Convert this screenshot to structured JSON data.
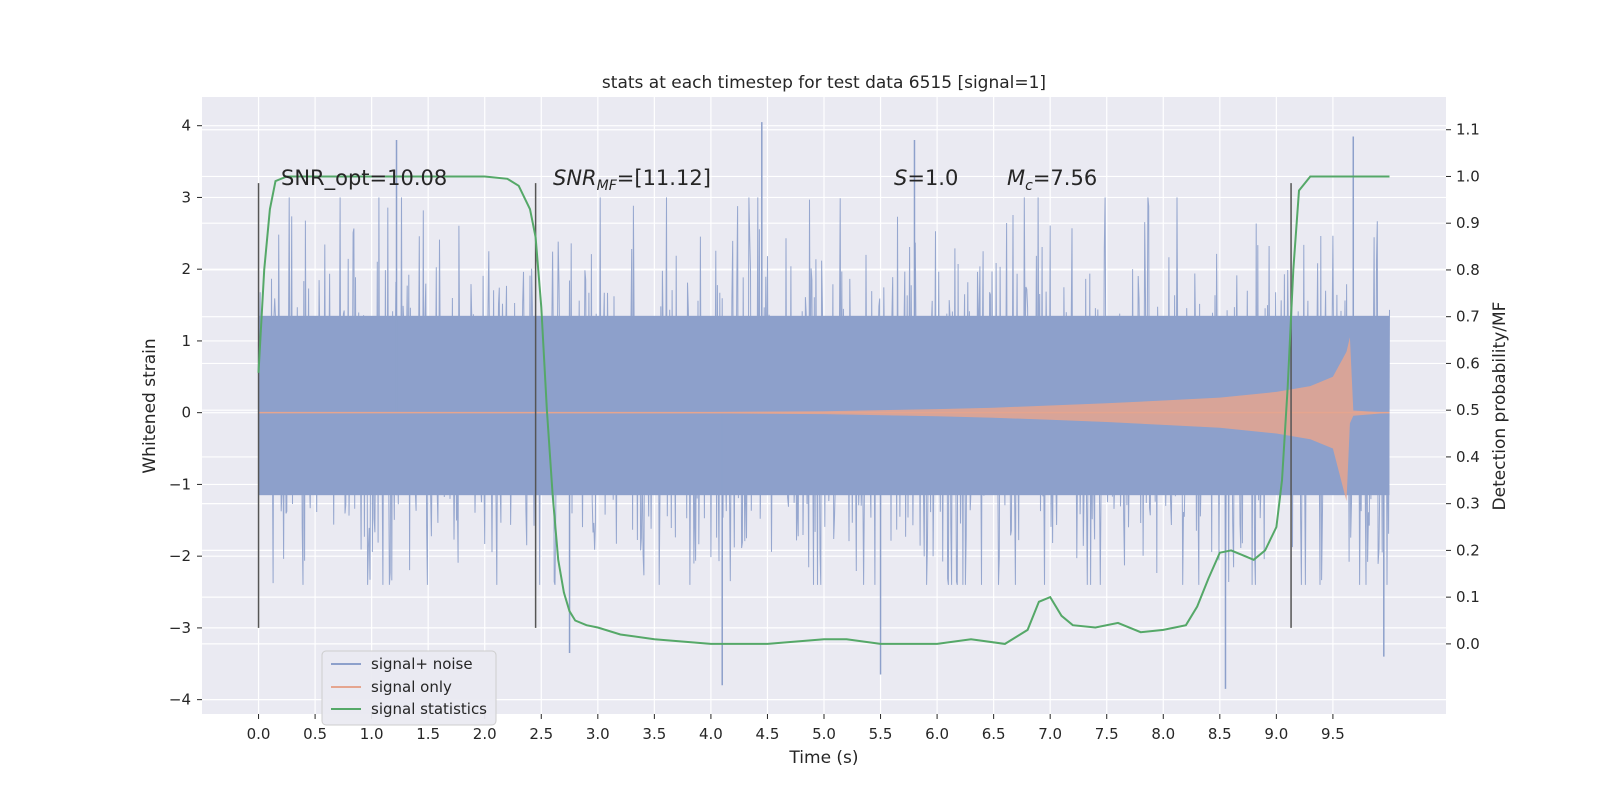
{
  "chart_data": {
    "type": "line",
    "title": "stats at each timestep for test data 6515 [signal=1]",
    "xlabel": "Time (s)",
    "ylabel_left": "Whitened strain",
    "ylabel_right": "Detection probability/MF",
    "xlim": [
      -0.5,
      10.5
    ],
    "ylim_left": [
      -4.2,
      4.4
    ],
    "ylim_right": [
      -0.15,
      1.17
    ],
    "x_ticks": [
      0.0,
      0.5,
      1.0,
      1.5,
      2.0,
      2.5,
      3.0,
      3.5,
      4.0,
      4.5,
      5.0,
      5.5,
      6.0,
      6.5,
      7.0,
      7.5,
      8.0,
      8.5,
      9.0,
      9.5
    ],
    "x_tick_labels": [
      "0.0",
      "0.5",
      "1.0",
      "1.5",
      "2.0",
      "2.5",
      "3.0",
      "3.5",
      "4.0",
      "4.5",
      "5.0",
      "5.5",
      "6.0",
      "6.5",
      "7.0",
      "7.5",
      "8.0",
      "8.5",
      "9.0",
      "9.5"
    ],
    "y_left_ticks": [
      -4,
      -3,
      -2,
      -1,
      0,
      1,
      2,
      3,
      4
    ],
    "y_left_tick_labels": [
      "−4",
      "−3",
      "−2",
      "−1",
      "0",
      "1",
      "2",
      "3",
      "4"
    ],
    "y_right_ticks": [
      0.0,
      0.1,
      0.2,
      0.3,
      0.4,
      0.5,
      0.6,
      0.7,
      0.8,
      0.9,
      1.0,
      1.1
    ],
    "y_right_tick_labels": [
      "0.0",
      "0.1",
      "0.2",
      "0.3",
      "0.4",
      "0.5",
      "0.6",
      "0.7",
      "0.8",
      "0.9",
      "1.0",
      "1.1"
    ],
    "grid": true,
    "legend_position": "lower-left",
    "annotations": {
      "snr_opt": "SNR_opt=10.08",
      "snr_mf_base": "SNR",
      "snr_mf_sub": "MF",
      "snr_mf_value": "=[11.12]",
      "s_base": "S",
      "s_value": "=1.0",
      "mc_base": "M",
      "mc_sub": "c",
      "mc_value": "=7.56"
    },
    "vertical_markers": [
      0.0,
      2.45,
      9.13
    ],
    "vertical_marker_range": [
      -3.0,
      3.2
    ],
    "series": [
      {
        "name": "signal+ noise",
        "axis": "left",
        "color": "#8da0cb",
        "x_range": [
          0.0,
          10.0
        ],
        "band_inner": [
          -1.15,
          1.35
        ],
        "typical_extent": [
          -2.4,
          3.0
        ],
        "extreme_peaks": [
          [
            1.22,
            3.8
          ],
          [
            4.45,
            4.05
          ],
          [
            5.8,
            3.8
          ],
          [
            9.68,
            3.85
          ],
          [
            4.1,
            -3.8
          ],
          [
            5.5,
            -3.65
          ],
          [
            8.55,
            -3.85
          ],
          [
            2.75,
            -3.35
          ],
          [
            9.95,
            -3.4
          ]
        ]
      },
      {
        "name": "signal only",
        "axis": "left",
        "color": "#e5a58f",
        "x": [
          0.0,
          4.0,
          5.0,
          6.0,
          6.5,
          7.0,
          7.5,
          8.0,
          8.5,
          9.0,
          9.3,
          9.5,
          9.62,
          9.65,
          9.68,
          10.0
        ],
        "envelope": [
          0.0,
          0.01,
          0.02,
          0.05,
          0.07,
          0.1,
          0.13,
          0.17,
          0.21,
          0.29,
          0.37,
          0.5,
          0.85,
          1.05,
          0.03,
          0.0
        ]
      },
      {
        "name": "signal statistics",
        "axis": "right",
        "color": "#55a868",
        "x": [
          0.0,
          0.05,
          0.1,
          0.15,
          0.25,
          0.5,
          1.0,
          1.5,
          2.0,
          2.2,
          2.3,
          2.4,
          2.45,
          2.5,
          2.55,
          2.6,
          2.65,
          2.7,
          2.75,
          2.8,
          2.9,
          3.0,
          3.2,
          3.5,
          4.0,
          4.5,
          5.0,
          5.2,
          5.5,
          6.0,
          6.3,
          6.6,
          6.8,
          6.9,
          7.0,
          7.1,
          7.2,
          7.4,
          7.6,
          7.8,
          8.0,
          8.2,
          8.3,
          8.4,
          8.5,
          8.6,
          8.7,
          8.8,
          8.9,
          9.0,
          9.05,
          9.1,
          9.15,
          9.2,
          9.3,
          9.5,
          10.0
        ],
        "y": [
          0.58,
          0.8,
          0.93,
          0.99,
          1.0,
          1.0,
          1.0,
          1.0,
          1.0,
          0.995,
          0.98,
          0.93,
          0.87,
          0.72,
          0.5,
          0.32,
          0.18,
          0.11,
          0.07,
          0.05,
          0.04,
          0.035,
          0.02,
          0.01,
          0.0,
          0.0,
          0.01,
          0.01,
          0.0,
          0.0,
          0.01,
          0.0,
          0.03,
          0.09,
          0.1,
          0.06,
          0.04,
          0.035,
          0.045,
          0.025,
          0.03,
          0.04,
          0.08,
          0.14,
          0.195,
          0.2,
          0.19,
          0.18,
          0.2,
          0.25,
          0.35,
          0.55,
          0.8,
          0.97,
          1.0,
          1.0,
          1.0
        ]
      }
    ]
  }
}
